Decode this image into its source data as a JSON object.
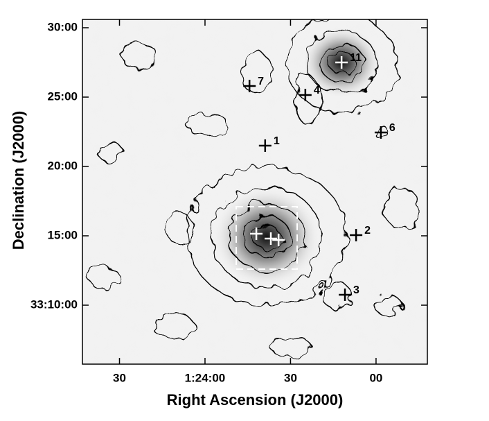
{
  "chart_data": {
    "type": "scatter",
    "x_label": "Right Ascension (J2000)",
    "y_label": "Declination (J2000)",
    "xlim": [
      5083,
      4962
    ],
    "ylim": [
      5.75,
      30.6
    ],
    "xticks": [
      {
        "value": 5070,
        "label": "30"
      },
      {
        "value": 5040,
        "label": "1:24:00"
      },
      {
        "value": 5010,
        "label": "30"
      },
      {
        "value": 4980,
        "label": "00"
      }
    ],
    "yticks": [
      {
        "value": 30,
        "label": "30:00"
      },
      {
        "value": 25,
        "label": "25:00"
      },
      {
        "value": 20,
        "label": "20:00"
      },
      {
        "value": 15,
        "label": "15:00"
      },
      {
        "value": 10,
        "label": "33:10:00"
      }
    ],
    "sources": {
      "labels": [
        "11",
        "7",
        "4",
        "6",
        "1",
        "2",
        "3"
      ],
      "x": [
        4992.1,
        5024.4,
        5004.8,
        4978.3,
        5018.9,
        4987.0,
        4990.9
      ],
      "y": [
        27.5,
        25.8,
        25.15,
        22.45,
        21.5,
        15.05,
        10.75
      ],
      "colors": [
        "#ffffff",
        "#000000",
        "#000000",
        "#000000",
        "#000000",
        "#000000",
        "#000000"
      ]
    },
    "cluster_markers": {
      "x": [
        5022.0,
        5016.9,
        5014.2
      ],
      "y": [
        15.15,
        14.8,
        14.7
      ],
      "color": "#ffffff"
    }
  }
}
